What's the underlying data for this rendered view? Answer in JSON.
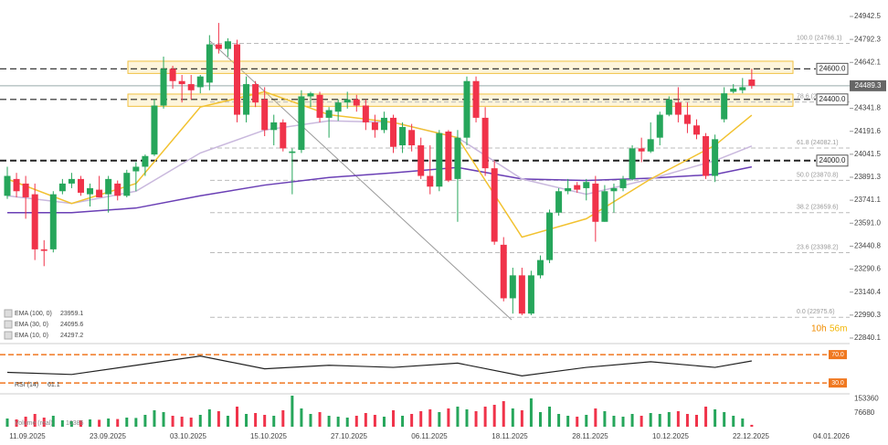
{
  "chart_data": {
    "type": "candlestick",
    "ylim": [
      22810,
      25050
    ],
    "yticks": [
      24942.5,
      24792.3,
      24642.1,
      24341.8,
      24191.6,
      24041.5,
      23891.3,
      23741.1,
      {
        "value": 23591.0,
        "label": "23591.0"
      },
      23440.8,
      23290.6,
      23140.4,
      22990.3,
      22840.1
    ],
    "x_labels": [
      "11.09.2025",
      "23.09.2025",
      "03.10.2025",
      "15.10.2025",
      "27.10.2025",
      "06.11.2025",
      "18.11.2025",
      "28.11.2025",
      "10.12.2025",
      "22.12.2025",
      "04.01.2026"
    ],
    "up_color": "#26a65b",
    "down_color": "#f0334a",
    "candles": {
      "open": [
        23770,
        23880,
        23850,
        23780,
        23420,
        23420,
        23800,
        23850,
        23880,
        23780,
        23810,
        23780,
        23850,
        23770,
        23930,
        23960,
        24040,
        24360,
        24600,
        24520,
        24500,
        24480,
        24510,
        24760,
        24730,
        24760,
        24300,
        24500,
        24400,
        24200,
        24250,
        24050,
        24070,
        24420,
        24430,
        24280,
        24320,
        24380,
        24400,
        24360,
        24250,
        24200,
        24280,
        24100,
        24200,
        24100,
        23900,
        23830,
        24190,
        23880,
        24150,
        24520,
        24280,
        23950,
        23450,
        23100,
        23250,
        23000,
        23250,
        23350,
        23660,
        23800,
        23840,
        23820,
        23850,
        23600,
        23800,
        23820,
        23880,
        24080,
        24060,
        24150,
        24300,
        24380,
        24300,
        24230,
        24160,
        23900,
        24270,
        24450,
        24460,
        24530
      ],
      "high": [
        23960,
        23920,
        23900,
        23850,
        23480,
        23800,
        23880,
        23920,
        23900,
        23850,
        23900,
        23900,
        23870,
        23940,
        23990,
        24040,
        24400,
        24680,
        24620,
        24560,
        24560,
        24560,
        24820,
        24900,
        24800,
        24790,
        24550,
        24520,
        24480,
        24300,
        24270,
        24080,
        24460,
        24450,
        24450,
        24350,
        24400,
        24450,
        24430,
        24400,
        24300,
        24320,
        24300,
        24250,
        24240,
        24150,
        24100,
        24200,
        24200,
        24200,
        24550,
        24550,
        24350,
        24000,
        23500,
        23300,
        23300,
        23280,
        23380,
        23680,
        23820,
        23880,
        23860,
        23880,
        23900,
        23840,
        23850,
        23900,
        24100,
        24150,
        24250,
        24320,
        24420,
        24480,
        24380,
        24270,
        24180,
        24170,
        24480,
        24500,
        24540,
        24600
      ],
      "low": [
        23750,
        23760,
        23620,
        23350,
        23310,
        23400,
        23780,
        23820,
        23770,
        23700,
        23760,
        23660,
        23740,
        23760,
        23800,
        23900,
        24030,
        24340,
        24470,
        24380,
        24400,
        24440,
        24460,
        24700,
        24680,
        24250,
        24250,
        24350,
        24160,
        24100,
        24060,
        23780,
        24050,
        24350,
        24250,
        24150,
        24260,
        24340,
        24320,
        24200,
        24150,
        24180,
        24050,
        24050,
        24060,
        23880,
        23780,
        23800,
        23860,
        23600,
        24100,
        24250,
        23900,
        23450,
        23080,
        23000,
        22990,
        22990,
        23230,
        23330,
        23640,
        23780,
        23790,
        23740,
        23470,
        23600,
        23660,
        23800,
        23870,
        23990,
        24050,
        24100,
        24290,
        24250,
        24180,
        24140,
        23880,
        23860,
        24250,
        24440,
        24440,
        24470
      ],
      "close": [
        23900,
        23800,
        23760,
        23420,
        23410,
        23780,
        23850,
        23880,
        23790,
        23820,
        23760,
        23880,
        23770,
        23920,
        23960,
        24030,
        24360,
        24600,
        24520,
        24500,
        24460,
        24550,
        24760,
        24730,
        24780,
        24300,
        24500,
        24380,
        24200,
        24250,
        24080,
        24060,
        24420,
        24440,
        24280,
        24330,
        24380,
        24400,
        24360,
        24250,
        24200,
        24280,
        24090,
        24220,
        24100,
        23900,
        23830,
        24180,
        23870,
        24150,
        24520,
        24280,
        23950,
        23470,
        23100,
        23250,
        23000,
        23250,
        23350,
        23660,
        23800,
        23820,
        23810,
        23860,
        23600,
        23800,
        23820,
        23880,
        24080,
        24060,
        24140,
        24300,
        24400,
        24300,
        24240,
        24170,
        23900,
        24140,
        24440,
        24470,
        24480,
        24489.3
      ]
    },
    "levels": [
      {
        "value": 24600,
        "label": "24600.0"
      },
      {
        "value": 24400,
        "label": "24400.0"
      },
      {
        "value": 24000,
        "label": "24000.0"
      }
    ],
    "last_price": 24489.3,
    "zones": [
      [
        24570,
        24650
      ],
      [
        24355,
        24435
      ]
    ],
    "fib": [
      {
        "value": 24766.1,
        "label": "100.0 (24766.1)"
      },
      {
        "value": 24382.9,
        "label": "78.6 (24382.9)"
      },
      {
        "value": 24082.1,
        "label": "61.8 (24082.1)"
      },
      {
        "value": 23870.8,
        "label": "50.0 (23870.8)"
      },
      {
        "value": 23659.6,
        "label": "38.2 (23659.6)"
      },
      {
        "value": 23398.2,
        "label": "23.6 (23398.2)"
      },
      {
        "value": 22975.6,
        "label": "0.0 (22975.6)"
      }
    ],
    "ema_x": [
      0,
      7,
      14,
      21,
      28,
      35,
      42,
      49,
      56,
      63,
      70,
      77,
      81
    ],
    "ema": [
      {
        "name": "EMA (100, 0)",
        "color": "#6a3fb5",
        "values": [
          23660,
          23660,
          23690,
          23770,
          23840,
          23890,
          23920,
          23955,
          23880,
          23870,
          23885,
          23910,
          23959.1
        ]
      },
      {
        "name": "EMA (30, 0)",
        "color": "#c9b8dd",
        "values": [
          23770,
          23720,
          23800,
          24050,
          24200,
          24260,
          24250,
          24150,
          23880,
          23780,
          23880,
          24000,
          24095.6
        ]
      },
      {
        "name": "EMA (10, 0)",
        "color": "#f2c230",
        "values": [
          23880,
          23720,
          23850,
          24350,
          24450,
          24300,
          24250,
          24150,
          23500,
          23620,
          23880,
          24100,
          24297.2
        ]
      }
    ],
    "countdown": [
      "10h",
      "56m"
    ],
    "rsi": {
      "name": "RSI (14)",
      "ylim": [
        16,
        83
      ],
      "yticks": [
        {
          "value": 70,
          "label": "70.0"
        },
        {
          "value": 30,
          "label": "30.0"
        }
      ],
      "values": [
        45,
        42,
        55,
        68,
        50,
        55,
        52,
        58,
        40,
        52,
        60,
        52,
        61.1
      ]
    },
    "volume": {
      "name": "Volume (real)",
      "ylim": [
        0,
        180000
      ],
      "yticks": [
        153360,
        76680
      ],
      "values": [
        45000,
        40000,
        55000,
        70000,
        50000,
        60000,
        35000,
        30000,
        35000,
        40000,
        38000,
        45000,
        42000,
        50000,
        48000,
        65000,
        90000,
        80000,
        60000,
        55000,
        50000,
        65000,
        95000,
        85000,
        60000,
        110000,
        70000,
        75000,
        65000,
        60000,
        90000,
        170000,
        100000,
        70000,
        80000,
        60000,
        55000,
        50000,
        60000,
        75000,
        65000,
        55000,
        90000,
        60000,
        70000,
        85000,
        95000,
        80000,
        100000,
        110000,
        95000,
        85000,
        110000,
        120000,
        140000,
        100000,
        90000,
        155000,
        80000,
        110000,
        70000,
        60000,
        55000,
        65000,
        100000,
        85000,
        60000,
        55000,
        70000,
        60000,
        75000,
        70000,
        80000,
        85000,
        70000,
        65000,
        110000,
        95000,
        80000,
        60000,
        45000,
        10385
      ]
    }
  }
}
